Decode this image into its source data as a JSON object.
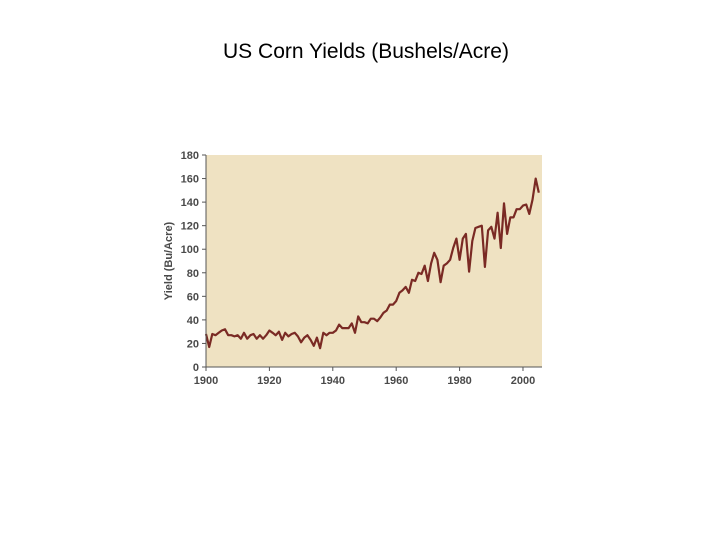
{
  "slide": {
    "title": "US Corn Yields (Bushels/Acre)"
  },
  "colors": {
    "plot_background": "#efe2c2",
    "series_line": "#7a2a24",
    "axis": "#555555",
    "tick_text": "#4a4a4a"
  },
  "chart_data": {
    "type": "line",
    "title": "",
    "xlabel": "",
    "ylabel": "Yield (Bu/Acre)",
    "xlim": [
      1900,
      2006
    ],
    "ylim": [
      0,
      180
    ],
    "x_ticks": [
      1900,
      1920,
      1940,
      1960,
      1980,
      2000
    ],
    "y_ticks": [
      0,
      20,
      40,
      60,
      80,
      100,
      120,
      140,
      160,
      180
    ],
    "grid": false,
    "legend": "none",
    "series": [
      {
        "x": [
          1900,
          1901,
          1902,
          1903,
          1904,
          1905,
          1906,
          1907,
          1908,
          1909,
          1910,
          1911,
          1912,
          1913,
          1914,
          1915,
          1916,
          1917,
          1918,
          1919,
          1920,
          1921,
          1922,
          1923,
          1924,
          1925,
          1926,
          1927,
          1928,
          1929,
          1930,
          1931,
          1932,
          1933,
          1934,
          1935,
          1936,
          1937,
          1938,
          1939,
          1940,
          1941,
          1942,
          1943,
          1944,
          1945,
          1946,
          1947,
          1948,
          1949,
          1950,
          1951,
          1952,
          1953,
          1954,
          1955,
          1956,
          1957,
          1958,
          1959,
          1960,
          1961,
          1962,
          1963,
          1964,
          1965,
          1966,
          1967,
          1968,
          1969,
          1970,
          1971,
          1972,
          1973,
          1974,
          1975,
          1976,
          1977,
          1978,
          1979,
          1980,
          1981,
          1982,
          1983,
          1984,
          1985,
          1986,
          1987,
          1988,
          1989,
          1990,
          1991,
          1992,
          1993,
          1994,
          1995,
          1996,
          1997,
          1998,
          1999,
          2000,
          2001,
          2002,
          2003,
          2004,
          2005
        ],
        "values": [
          28,
          17,
          28,
          27,
          29,
          31,
          32,
          27,
          27,
          26,
          27,
          24,
          29,
          24,
          27,
          28,
          24,
          27,
          24,
          27,
          31,
          29,
          27,
          30,
          23,
          29,
          26,
          28,
          29,
          26,
          21,
          25,
          27,
          23,
          18,
          25,
          16,
          29,
          27,
          29,
          29,
          31,
          36,
          33,
          33,
          33,
          37,
          29,
          43,
          38,
          38,
          37,
          41,
          41,
          39,
          42,
          46,
          48,
          53,
          53,
          56,
          63,
          65,
          68,
          63,
          74,
          73,
          80,
          79,
          86,
          73,
          88,
          97,
          91,
          72,
          86,
          88,
          91,
          101,
          109,
          91,
          109,
          113,
          81,
          107,
          118,
          119,
          120,
          85,
          116,
          119,
          109,
          131,
          101,
          139,
          113,
          127,
          127,
          134,
          134,
          137,
          138,
          130,
          142,
          160,
          148
        ]
      }
    ]
  }
}
